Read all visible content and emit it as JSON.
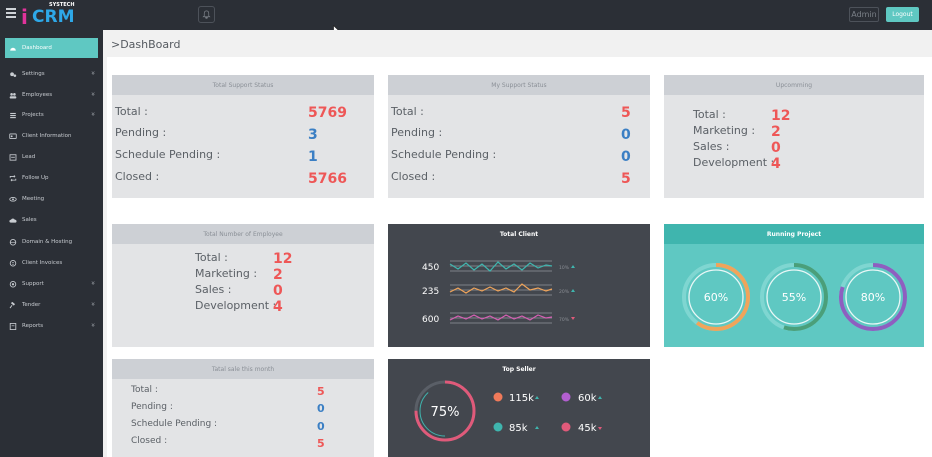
{
  "header": {
    "logo_brand": "CRM",
    "logo_sub": "SYSTECH",
    "admin_label": "Admin",
    "logout_label": "Logout"
  },
  "sidebar": {
    "items": [
      {
        "label": "Dashboard",
        "icon": "dashboard-icon",
        "chevron": false
      },
      {
        "label": "Settings",
        "icon": "gear-icon",
        "chevron": true
      },
      {
        "label": "Employees",
        "icon": "users-icon",
        "chevron": true
      },
      {
        "label": "Projects",
        "icon": "list-icon",
        "chevron": true
      },
      {
        "label": "Client Information",
        "icon": "id-card-icon",
        "chevron": false
      },
      {
        "label": "Lead",
        "icon": "lead-icon",
        "chevron": false
      },
      {
        "label": "Follow Up",
        "icon": "retweet-icon",
        "chevron": false
      },
      {
        "label": "Meeting",
        "icon": "eye-icon",
        "chevron": false
      },
      {
        "label": "Sales",
        "icon": "cloud-icon",
        "chevron": false
      },
      {
        "label": "Domain & Hosting",
        "icon": "globe-icon",
        "chevron": false
      },
      {
        "label": "Client Invoices",
        "icon": "invoice-icon",
        "chevron": false
      },
      {
        "label": "Support",
        "icon": "support-icon",
        "chevron": true
      },
      {
        "label": "Tender",
        "icon": "gavel-icon",
        "chevron": true
      },
      {
        "label": "Reports",
        "icon": "report-icon",
        "chevron": true
      }
    ]
  },
  "page_title": ">DashBoard",
  "total_support": {
    "title": "Total Support Status",
    "rows": [
      {
        "label": "Total :",
        "value": "5769"
      },
      {
        "label": "Pending :",
        "value": "3"
      },
      {
        "label": "Schedule Pending :",
        "value": "1"
      },
      {
        "label": "Closed :",
        "value": "5766"
      }
    ]
  },
  "my_support": {
    "title": "My Support Status",
    "rows": [
      {
        "label": "Total :",
        "value": "5"
      },
      {
        "label": "Pending :",
        "value": "0"
      },
      {
        "label": "Schedule Pending :",
        "value": "0"
      },
      {
        "label": "Closed :",
        "value": "5"
      }
    ]
  },
  "upcoming": {
    "title": "Upcomming",
    "rows": [
      {
        "label": "Total :",
        "value": "12"
      },
      {
        "label": "Marketing :",
        "value": "2"
      },
      {
        "label": "Sales :",
        "value": "0"
      },
      {
        "label": "Development :",
        "value": "4"
      }
    ]
  },
  "employees": {
    "title": "Total Number of Employee",
    "rows": [
      {
        "label": "Total :",
        "value": "12"
      },
      {
        "label": "Marketing :",
        "value": "2"
      },
      {
        "label": "Sales :",
        "value": "0"
      },
      {
        "label": "Development :",
        "value": "4"
      }
    ]
  },
  "total_client": {
    "title": "Total Client",
    "rows": [
      {
        "value": "450",
        "pct": "10%",
        "trend": "up",
        "color": "#3fb5ae"
      },
      {
        "value": "235",
        "pct": "20%",
        "trend": "up",
        "color": "#f0a45a"
      },
      {
        "value": "600",
        "pct": "70%",
        "trend": "down",
        "color": "#d85fb5"
      }
    ]
  },
  "running_project": {
    "title": "Running Project",
    "rings": [
      {
        "label": "60%",
        "percent": 60
      },
      {
        "label": "55%",
        "percent": 55
      },
      {
        "label": "80%",
        "percent": 80
      }
    ]
  },
  "monthly_sale": {
    "title": "Tatal sale this month",
    "rows": [
      {
        "label": "Total :",
        "value": "5"
      },
      {
        "label": "Pending :",
        "value": "0"
      },
      {
        "label": "Schedule Pending :",
        "value": "0"
      },
      {
        "label": "Closed :",
        "value": "5"
      }
    ]
  },
  "top_seller": {
    "title": "Top Seller",
    "ring_label": "75%",
    "ring_percent": 75,
    "items": [
      {
        "value": "115k",
        "trend": "up",
        "color": "#f07a5a"
      },
      {
        "value": "60k",
        "trend": "up",
        "color": "#b35fd0"
      },
      {
        "value": "85k",
        "trend": "up",
        "color": "#3fb5ae"
      },
      {
        "value": "45k",
        "trend": "down",
        "color": "#e05a7a"
      }
    ]
  }
}
